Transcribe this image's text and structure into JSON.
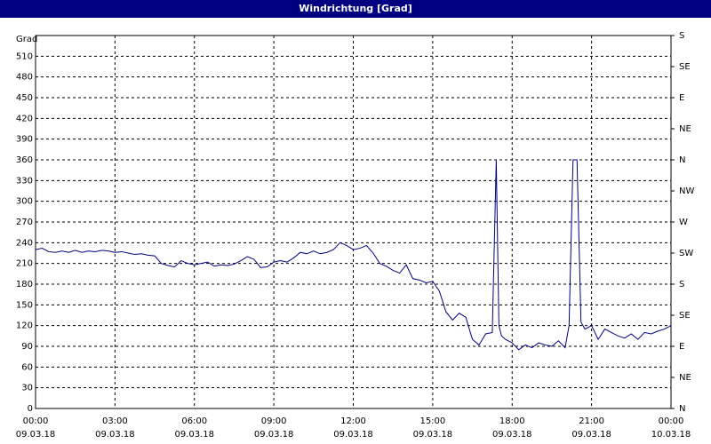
{
  "chart_data": {
    "type": "line",
    "title": "Windrichtung [Grad]",
    "y_label": "Grad",
    "color": "#000080",
    "grid": true,
    "xlim": [
      0,
      24
    ],
    "xticks": [
      {
        "value": 0,
        "label": "00:00",
        "date": "09.03.18"
      },
      {
        "value": 3,
        "label": "03:00",
        "date": "09.03.18"
      },
      {
        "value": 6,
        "label": "06:00",
        "date": "09.03.18"
      },
      {
        "value": 9,
        "label": "09:00",
        "date": "09.03.18"
      },
      {
        "value": 12,
        "label": "12:00",
        "date": "09.03.18"
      },
      {
        "value": 15,
        "label": "15:00",
        "date": "09.03.18"
      },
      {
        "value": 18,
        "label": "18:00",
        "date": "09.03.18"
      },
      {
        "value": 21,
        "label": "21:00",
        "date": "09.03.18"
      },
      {
        "value": 24,
        "label": "00:00",
        "date": "10.03.18"
      }
    ],
    "ylim": [
      0,
      540
    ],
    "yticks": [
      0,
      30,
      60,
      90,
      120,
      150,
      180,
      210,
      240,
      270,
      300,
      330,
      360,
      390,
      420,
      450,
      480,
      510
    ],
    "y2lim": [
      0,
      540
    ],
    "y2ticks": [
      {
        "value": 0,
        "label": "N"
      },
      {
        "value": 45,
        "label": "NE"
      },
      {
        "value": 90,
        "label": "E"
      },
      {
        "value": 135,
        "label": "SE"
      },
      {
        "value": 180,
        "label": "S"
      },
      {
        "value": 225,
        "label": "SW"
      },
      {
        "value": 270,
        "label": "W"
      },
      {
        "value": 315,
        "label": "NW"
      },
      {
        "value": 360,
        "label": "N"
      },
      {
        "value": 405,
        "label": "NE"
      },
      {
        "value": 450,
        "label": "E"
      },
      {
        "value": 495,
        "label": "SE"
      },
      {
        "value": 540,
        "label": "S"
      }
    ],
    "x": [
      0,
      0.25,
      0.5,
      0.75,
      1,
      1.25,
      1.5,
      1.75,
      2,
      2.25,
      2.5,
      2.75,
      3,
      3.25,
      3.5,
      3.75,
      4,
      4.25,
      4.5,
      4.75,
      5,
      5.25,
      5.5,
      5.75,
      6,
      6.25,
      6.5,
      6.75,
      7,
      7.25,
      7.5,
      7.75,
      8,
      8.25,
      8.5,
      8.75,
      9,
      9.25,
      9.5,
      9.75,
      10,
      10.25,
      10.5,
      10.75,
      11,
      11.25,
      11.5,
      11.75,
      12,
      12.25,
      12.5,
      12.75,
      13,
      13.25,
      13.5,
      13.75,
      14,
      14.25,
      14.5,
      14.75,
      15,
      15.25,
      15.5,
      15.75,
      16,
      16.25,
      16.5,
      16.75,
      17,
      17.25,
      17.4,
      17.5,
      17.6,
      17.75,
      18,
      18.25,
      18.5,
      18.75,
      19,
      19.25,
      19.5,
      19.75,
      20,
      20.15,
      20.3,
      20.45,
      20.6,
      20.75,
      21,
      21.25,
      21.5,
      21.75,
      22,
      22.25,
      22.5,
      22.75,
      23,
      23.25,
      23.5,
      23.75,
      24
    ],
    "values": [
      230,
      232,
      227,
      226,
      228,
      226,
      229,
      226,
      228,
      227,
      229,
      228,
      226,
      227,
      225,
      223,
      224,
      222,
      221,
      210,
      207,
      205,
      214,
      210,
      208,
      210,
      212,
      206,
      208,
      207,
      209,
      214,
      220,
      216,
      204,
      205,
      212,
      214,
      212,
      218,
      226,
      224,
      228,
      224,
      226,
      230,
      240,
      236,
      230,
      232,
      236,
      225,
      210,
      206,
      200,
      196,
      208,
      188,
      186,
      182,
      184,
      170,
      140,
      128,
      138,
      132,
      100,
      92,
      108,
      110,
      360,
      120,
      105,
      100,
      95,
      85,
      92,
      88,
      95,
      92,
      90,
      98,
      88,
      120,
      360,
      360,
      125,
      115,
      120,
      100,
      115,
      110,
      105,
      102,
      108,
      100,
      110,
      108,
      112,
      115,
      120
    ]
  }
}
